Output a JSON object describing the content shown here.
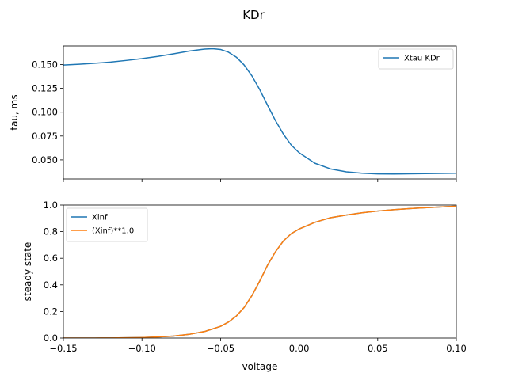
{
  "figure": {
    "title": "KDr",
    "xlabel": "voltage"
  },
  "chart_data": [
    {
      "type": "line",
      "title": "KDr",
      "xlabel": "",
      "ylabel": "tau, ms",
      "xlim": [
        -0.15,
        0.1
      ],
      "ylim": [
        0.03,
        0.1695
      ],
      "x_ticks": [
        -0.15,
        -0.1,
        -0.05,
        0.0,
        0.05,
        0.1
      ],
      "x_tick_labels_shown": false,
      "y_ticks": [
        0.05,
        0.075,
        0.1,
        0.125,
        0.15
      ],
      "y_tick_labels": [
        "0.050",
        "0.075",
        "0.100",
        "0.125",
        "0.150"
      ],
      "grid": false,
      "legend": "top-right",
      "series": [
        {
          "name": "Xtau KDr",
          "color": "#1f77b4",
          "x": [
            -0.15,
            -0.14,
            -0.13,
            -0.12,
            -0.11,
            -0.1,
            -0.09,
            -0.08,
            -0.07,
            -0.06,
            -0.055,
            -0.05,
            -0.045,
            -0.04,
            -0.035,
            -0.03,
            -0.025,
            -0.02,
            -0.015,
            -0.01,
            -0.005,
            0.0,
            0.01,
            0.02,
            0.03,
            0.04,
            0.05,
            0.06,
            0.07,
            0.08,
            0.09,
            0.1
          ],
          "values": [
            0.1495,
            0.1503,
            0.1513,
            0.1526,
            0.1543,
            0.1562,
            0.1585,
            0.1612,
            0.1641,
            0.1662,
            0.1666,
            0.1658,
            0.163,
            0.1578,
            0.1495,
            0.138,
            0.1235,
            0.107,
            0.091,
            0.077,
            0.0655,
            0.0575,
            0.0465,
            0.0405,
            0.0375,
            0.036,
            0.0353,
            0.0352,
            0.0354,
            0.0356,
            0.0358,
            0.036
          ]
        }
      ]
    },
    {
      "type": "line",
      "xlabel": "voltage",
      "ylabel": "steady state",
      "xlim": [
        -0.15,
        0.1
      ],
      "ylim": [
        0.0,
        1.0
      ],
      "x_ticks": [
        -0.15,
        -0.1,
        -0.05,
        0.0,
        0.05,
        0.1
      ],
      "x_tick_labels": [
        "−0.15",
        "−0.10",
        "−0.05",
        "0.00",
        "0.05",
        "0.10"
      ],
      "y_ticks": [
        0.0,
        0.2,
        0.4,
        0.6,
        0.8,
        1.0
      ],
      "y_tick_labels": [
        "0.0",
        "0.2",
        "0.4",
        "0.6",
        "0.8",
        "1.0"
      ],
      "grid": false,
      "legend": "top-left",
      "series": [
        {
          "name": "Xinf",
          "color": "#1f77b4",
          "x": [
            -0.15,
            -0.14,
            -0.13,
            -0.12,
            -0.11,
            -0.1,
            -0.09,
            -0.08,
            -0.07,
            -0.06,
            -0.05,
            -0.045,
            -0.04,
            -0.035,
            -0.03,
            -0.025,
            -0.02,
            -0.015,
            -0.01,
            -0.005,
            0.0,
            0.01,
            0.02,
            0.03,
            0.04,
            0.05,
            0.06,
            0.07,
            0.08,
            0.09,
            0.1
          ],
          "values": [
            0.0,
            0.0,
            0.0,
            0.001,
            0.002,
            0.004,
            0.008,
            0.015,
            0.028,
            0.05,
            0.088,
            0.12,
            0.165,
            0.23,
            0.32,
            0.43,
            0.55,
            0.65,
            0.73,
            0.785,
            0.82,
            0.87,
            0.905,
            0.925,
            0.942,
            0.955,
            0.965,
            0.973,
            0.98,
            0.986,
            0.992
          ]
        },
        {
          "name": "(Xinf)**1.0",
          "color": "#ff7f0e",
          "x": [
            -0.15,
            -0.14,
            -0.13,
            -0.12,
            -0.11,
            -0.1,
            -0.09,
            -0.08,
            -0.07,
            -0.06,
            -0.05,
            -0.045,
            -0.04,
            -0.035,
            -0.03,
            -0.025,
            -0.02,
            -0.015,
            -0.01,
            -0.005,
            0.0,
            0.01,
            0.02,
            0.03,
            0.04,
            0.05,
            0.06,
            0.07,
            0.08,
            0.09,
            0.1
          ],
          "values": [
            0.0,
            0.0,
            0.0,
            0.001,
            0.002,
            0.004,
            0.008,
            0.015,
            0.028,
            0.05,
            0.088,
            0.12,
            0.165,
            0.23,
            0.32,
            0.43,
            0.55,
            0.65,
            0.73,
            0.785,
            0.82,
            0.87,
            0.905,
            0.925,
            0.942,
            0.955,
            0.965,
            0.973,
            0.98,
            0.986,
            0.992
          ]
        }
      ]
    }
  ]
}
